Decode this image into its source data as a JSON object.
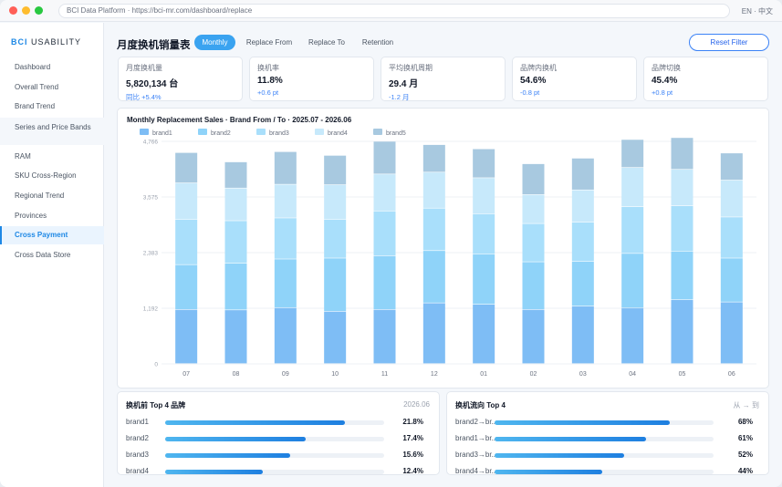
{
  "browser": {
    "url": "BCI Data Platform · https://bci-mr.com/dashboard/replace",
    "lang": "EN · 中文"
  },
  "sidebar": {
    "logo_bold": "BCI",
    "logo_text": "USABILITY",
    "items": [
      {
        "label": "Dashboard"
      },
      {
        "label": "Overall Trend"
      },
      {
        "label": "Brand Trend"
      },
      {
        "label": "Series and Price Bands"
      },
      {
        "label": "RAM"
      },
      {
        "label": "SKU Cross-Region"
      },
      {
        "label": "Regional Trend"
      },
      {
        "label": "Provinces"
      },
      {
        "label": "Cross Payment"
      },
      {
        "label": "Cross Data Store"
      }
    ]
  },
  "header": {
    "title": "月度换机销量表",
    "tabs": [
      {
        "label": "Monthly"
      },
      {
        "label": "Replace From"
      },
      {
        "label": "Replace To"
      },
      {
        "label": "Retention"
      }
    ],
    "reset_label": "Reset Filter"
  },
  "kpis": [
    {
      "label": "月度换机量",
      "value": "5,820,134 台",
      "change": "同比 +5.4%"
    },
    {
      "label": "换机率",
      "value": "11.8%",
      "change": "+0.6 pt"
    },
    {
      "label": "平均换机周期",
      "value": "29.4 月",
      "change": "-1.2 月"
    },
    {
      "label": "品牌内换机",
      "value": "54.6%",
      "change": "-0.8 pt"
    },
    {
      "label": "品牌切换",
      "value": "45.4%",
      "change": "+0.8 pt"
    }
  ],
  "chart_data": {
    "type": "bar",
    "stacked": true,
    "title": "Monthly Replacement Sales · Brand From / To · 2025.07 - 2026.06",
    "categories": [
      "07",
      "08",
      "09",
      "10",
      "11",
      "12",
      "01",
      "02",
      "03",
      "04",
      "05",
      "06"
    ],
    "ylim": [
      0,
      4766
    ],
    "yticks": [
      "0",
      "1,192",
      "2,383",
      "3,575",
      "4,766"
    ],
    "grid": true,
    "legend_position": "top",
    "colors": [
      "#7ebdf5",
      "#8fd3f9",
      "#a9dffb",
      "#c7e9fb",
      "#a8c9e0"
    ],
    "series": [
      {
        "name": "brand1",
        "values": [
          1160,
          1150,
          1200,
          1120,
          1160,
          1300,
          1270,
          1160,
          1230,
          1190,
          1370,
          1320
        ]
      },
      {
        "name": "brand2",
        "values": [
          960,
          1000,
          1040,
          1140,
          1150,
          1120,
          1080,
          1020,
          960,
          1170,
          1040,
          940
        ]
      },
      {
        "name": "brand3",
        "values": [
          970,
          910,
          880,
          830,
          960,
          910,
          860,
          820,
          840,
          1000,
          970,
          880
        ]
      },
      {
        "name": "brand4",
        "values": [
          780,
          700,
          720,
          740,
          790,
          770,
          770,
          620,
          690,
          840,
          780,
          790
        ]
      },
      {
        "name": "brand5",
        "values": [
          650,
          560,
          700,
          630,
          700,
          590,
          620,
          660,
          680,
          600,
          680,
          580
        ]
      }
    ]
  },
  "top_from": {
    "title": "换机前 Top 4 品牌",
    "right": "2026.06",
    "rows": [
      {
        "name": "brand1",
        "pct": "21.8%",
        "fill": 0.821
      },
      {
        "name": "brand2",
        "pct": "17.4%",
        "fill": 0.643
      },
      {
        "name": "brand3",
        "pct": "15.6%",
        "fill": 0.571
      },
      {
        "name": "brand4",
        "pct": "12.4%",
        "fill": 0.446
      }
    ]
  },
  "top_flow": {
    "title": "换机流向 Top 4",
    "right": "从 → 到",
    "rows": [
      {
        "name": "brand2→br...",
        "pct": "68%",
        "fill": 0.8
      },
      {
        "name": "brand1→br...",
        "pct": "61%",
        "fill": 0.69
      },
      {
        "name": "brand3→br...",
        "pct": "52%",
        "fill": 0.59
      },
      {
        "name": "brand4→br...",
        "pct": "44%",
        "fill": 0.49
      }
    ]
  }
}
